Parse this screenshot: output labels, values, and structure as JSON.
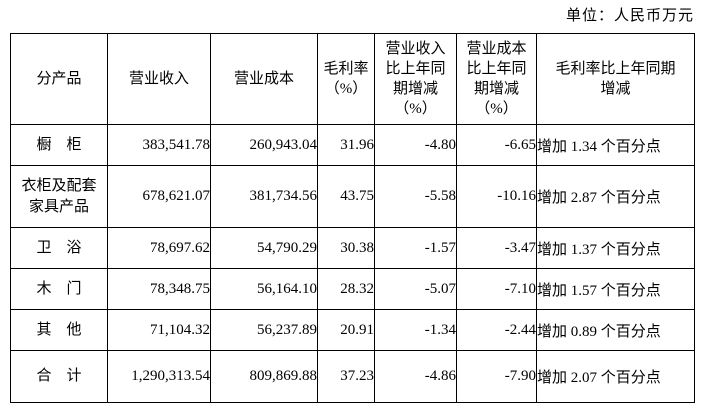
{
  "unit_label": "单位：人民币万元",
  "table": {
    "headers": [
      "分产品",
      "营业收入",
      "营业成本",
      "毛利率\n（%）",
      "营业收入\n比上年同\n期增减\n（%）",
      "营业成本\n比上年同\n期增减\n（%）",
      "毛利率比上年同期\n增减"
    ],
    "rows": [
      {
        "product": "橱　柜",
        "revenue": "383,541.78",
        "cost": "260,943.04",
        "margin": "31.96",
        "revenue_change": "-4.80",
        "cost_change": "-6.65",
        "margin_change": "增加 1.34 个百分点"
      },
      {
        "product": "衣柜及配套\n家具产品",
        "revenue": "678,621.07",
        "cost": "381,734.56",
        "margin": "43.75",
        "revenue_change": "-5.58",
        "cost_change": "-10.16",
        "margin_change": "增加 2.87 个百分点"
      },
      {
        "product": "卫　浴",
        "revenue": "78,697.62",
        "cost": "54,790.29",
        "margin": "30.38",
        "revenue_change": "-1.57",
        "cost_change": "-3.47",
        "margin_change": "增加 1.37 个百分点"
      },
      {
        "product": "木　门",
        "revenue": "78,348.75",
        "cost": "56,164.10",
        "margin": "28.32",
        "revenue_change": "-5.07",
        "cost_change": "-7.10",
        "margin_change": "增加 1.57 个百分点"
      },
      {
        "product": "其　他",
        "revenue": "71,104.32",
        "cost": "56,237.89",
        "margin": "20.91",
        "revenue_change": "-1.34",
        "cost_change": "-2.44",
        "margin_change": "增加 0.89 个百分点"
      },
      {
        "product": "合　计",
        "revenue": "1,290,313.54",
        "cost": "809,869.88",
        "margin": "37.23",
        "revenue_change": "-4.86",
        "cost_change": "-7.90",
        "margin_change": "增加 2.07 个百分点"
      }
    ]
  }
}
